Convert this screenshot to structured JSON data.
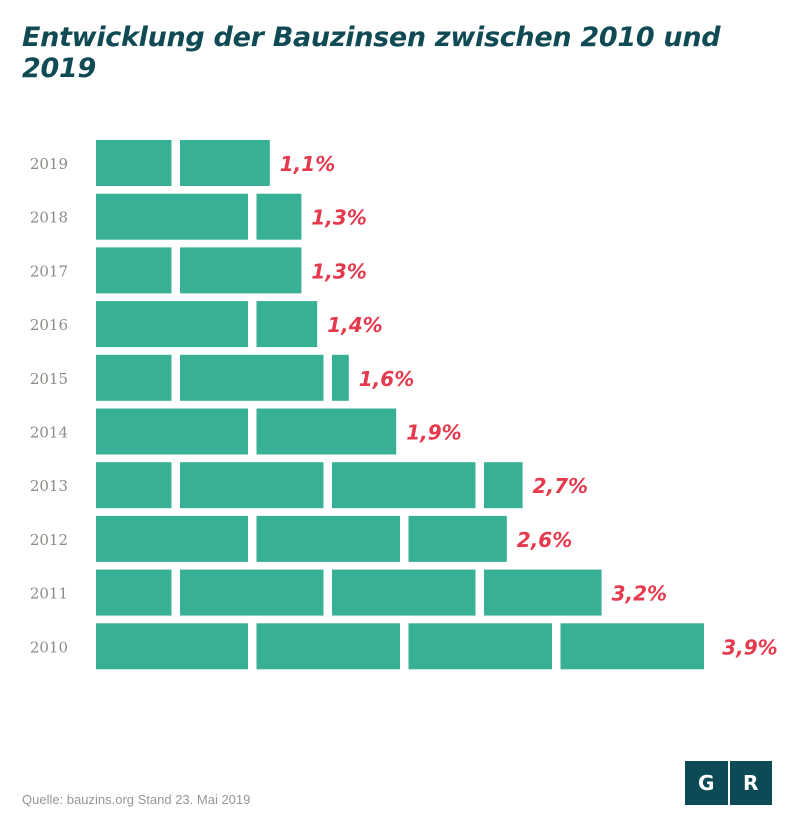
{
  "chart_data": {
    "type": "bar",
    "orientation": "horizontal",
    "title": "Entwicklung der Bauzinsen zwischen 2010 und 2019",
    "categories": [
      "2019",
      "2018",
      "2017",
      "2016",
      "2015",
      "2014",
      "2013",
      "2012",
      "2011",
      "2010"
    ],
    "values": [
      1.1,
      1.3,
      1.3,
      1.4,
      1.6,
      1.9,
      2.7,
      2.6,
      3.2,
      3.9
    ],
    "value_labels": [
      "1,1%",
      "1,3%",
      "1,3%",
      "1,4%",
      "1,6%",
      "1,9%",
      "2,7%",
      "2,6%",
      "3,2%",
      "3,9%"
    ],
    "xlabel": "",
    "ylabel": "",
    "colors": {
      "bar": "#38b095",
      "label": "#e53a4d",
      "title": "#0f4a55",
      "axis_text": "#8f8a85"
    }
  },
  "footer": {
    "source": "Quelle: bauzins.org Stand 23. Mai 2019",
    "logo_letters": [
      "G",
      "R"
    ]
  }
}
